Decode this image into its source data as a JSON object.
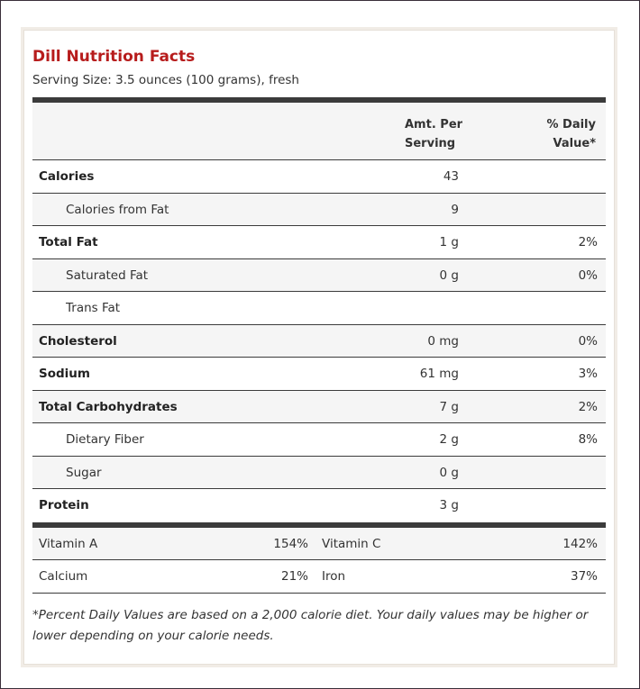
{
  "title": "Dill Nutrition Facts",
  "serving": "Serving Size: 3.5 ounces (100 grams), fresh",
  "header": {
    "amt_line1": "Amt. Per",
    "amt_line2": "Serving",
    "dv_line1": "% Daily",
    "dv_line2": "Value*"
  },
  "rows": [
    {
      "name": "Calories",
      "amount": "43",
      "dv": "",
      "bold": true
    },
    {
      "name": "Calories from Fat",
      "amount": "9",
      "dv": "",
      "bold": false
    },
    {
      "name": "Total Fat",
      "amount": "1 g",
      "dv": "2%",
      "bold": true
    },
    {
      "name": "Saturated Fat",
      "amount": "0 g",
      "dv": "0%",
      "bold": false
    },
    {
      "name": "Trans Fat",
      "amount": "",
      "dv": "",
      "bold": false
    },
    {
      "name": "Cholesterol",
      "amount": "0 mg",
      "dv": "0%",
      "bold": true
    },
    {
      "name": "Sodium",
      "amount": "61 mg",
      "dv": "3%",
      "bold": true
    },
    {
      "name": "Total Carbohydrates",
      "amount": "7 g",
      "dv": "2%",
      "bold": true
    },
    {
      "name": "Dietary Fiber",
      "amount": "2 g",
      "dv": "8%",
      "bold": false
    },
    {
      "name": "Sugar",
      "amount": "0 g",
      "dv": "",
      "bold": false
    },
    {
      "name": "Protein",
      "amount": "3 g",
      "dv": "",
      "bold": true
    }
  ],
  "vitamins": [
    {
      "name1": "Vitamin A",
      "value1": "154%",
      "name2": "Vitamin C",
      "value2": "142%"
    },
    {
      "name1": "Calcium",
      "value1": "21%",
      "name2": "Iron",
      "value2": "37%"
    }
  ],
  "footnote": "*Percent Daily Values are based on a 2,000 calorie diet. Your daily values may be higher or lower depending on your calorie needs.",
  "colors": {
    "title": "#b71c1c",
    "rule": "#3b3b3b",
    "stripe": "#f5f5f5"
  }
}
